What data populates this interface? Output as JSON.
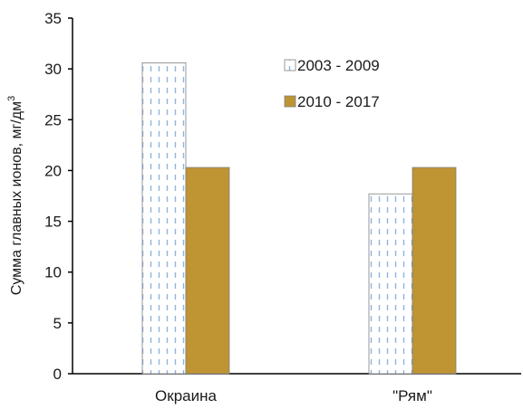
{
  "chart_data": {
    "type": "bar",
    "ylabel": "Сумма главных ионов, мг/дм",
    "ylabel_superscript": "3",
    "xlabel": "",
    "ylim": [
      0,
      35
    ],
    "yticks": [
      0,
      5,
      10,
      15,
      20,
      25,
      30,
      35
    ],
    "grid": false,
    "legend_position": "top-right",
    "categories": [
      "Окраина",
      "\"Рям\""
    ],
    "series": [
      {
        "name": "2003 - 2009",
        "values": [
          30.6,
          17.7
        ],
        "pattern": "dashed-vertical",
        "color": "#8fb4de"
      },
      {
        "name": "2010 - 2017",
        "values": [
          20.3,
          20.3
        ],
        "pattern": "solid",
        "color": "#bf9433"
      }
    ]
  }
}
